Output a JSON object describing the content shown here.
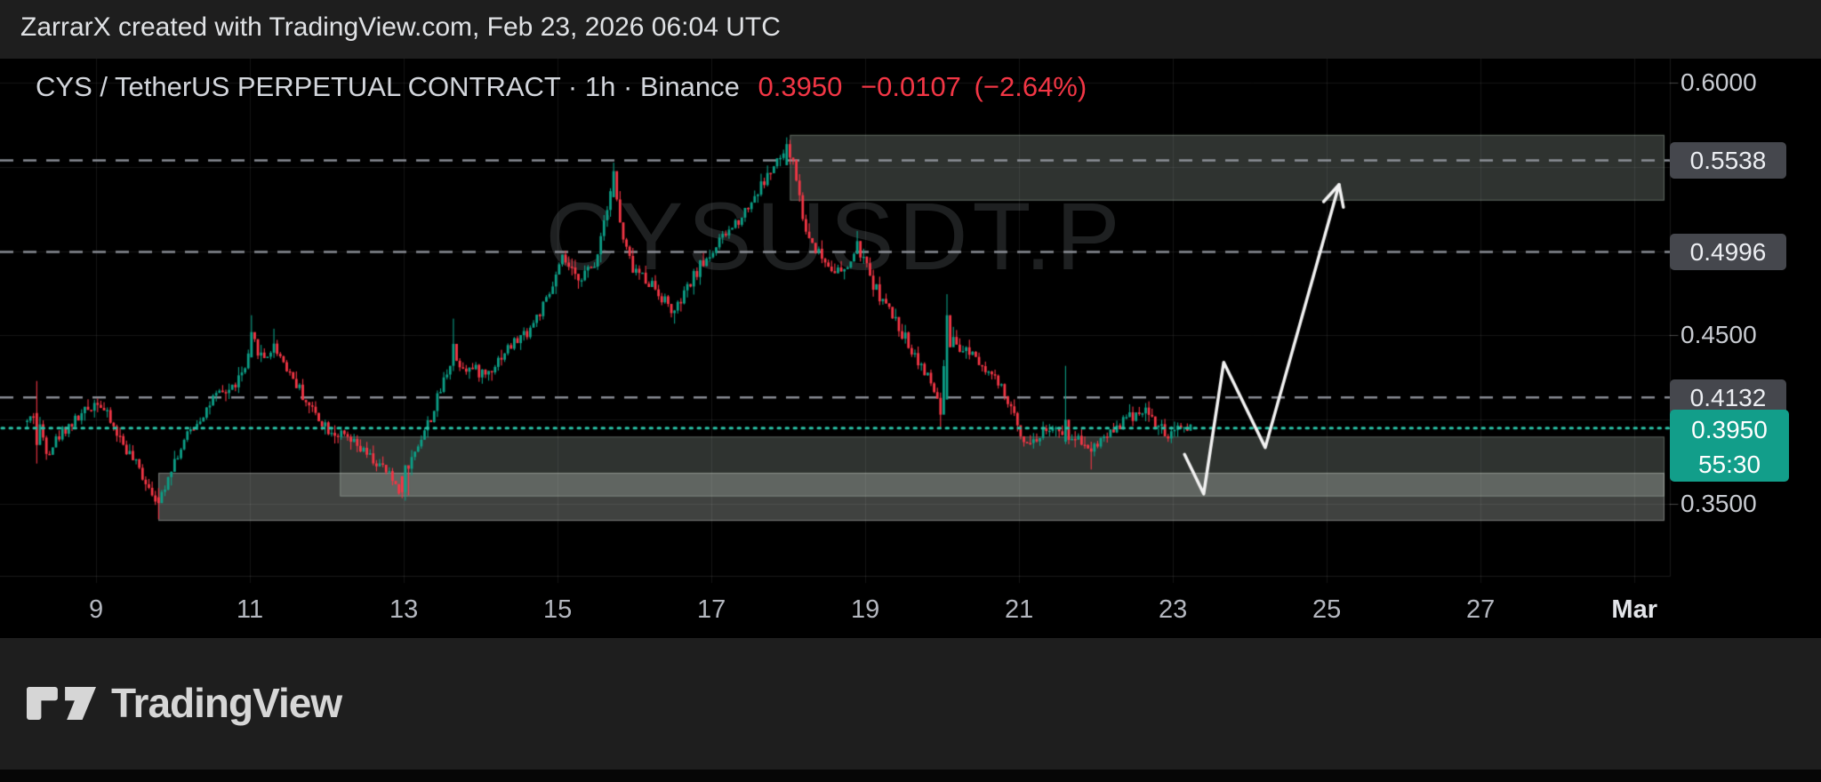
{
  "attribution": "ZarrarX created with TradingView.com, Feb 23, 2026 06:04 UTC",
  "header": {
    "symbol_title": "CYS / TetherUS PERPETUAL CONTRACT · 1h · Binance",
    "last_price": "0.3950",
    "change": "−0.0107",
    "change_pct": "(−2.64%)"
  },
  "watermark": "CYSUSDT.P",
  "logo": {
    "brand": "TradingView"
  },
  "colors": {
    "page_bg": "#1e1e1e",
    "panel_bg": "#000000",
    "up": "#0c9e86",
    "down": "#f23645",
    "quote_red": "#f23645",
    "dashed_level": "rgba(150,153,162,0.9)",
    "price_line": "#2abfa4",
    "grid": "rgba(255,255,255,0.08)",
    "axis_border": "rgba(255,255,255,0.10)",
    "tick": "rgba(255,255,255,0.28)",
    "projection": "#f2f2f2",
    "label_box_bg": "#45474d",
    "current_label_bg": "#129e8a"
  },
  "price_axis": {
    "labels": [
      {
        "text": "0.6000",
        "price": 0.6,
        "style": "plain"
      },
      {
        "text": "0.5538",
        "price": 0.5538,
        "style": "box"
      },
      {
        "text": "0.4996",
        "price": 0.4996,
        "style": "box"
      },
      {
        "text": "0.4500",
        "price": 0.45,
        "style": "plain"
      },
      {
        "text": "0.4132",
        "price": 0.4132,
        "style": "box"
      },
      {
        "text": "0.3950",
        "price": 0.395,
        "style": "current",
        "countdown": "55:30"
      },
      {
        "text": "0.3500",
        "price": 0.35,
        "style": "plain"
      }
    ]
  },
  "time_axis": {
    "labels": [
      {
        "text": "9",
        "day": 9
      },
      {
        "text": "11",
        "day": 11
      },
      {
        "text": "13",
        "day": 13
      },
      {
        "text": "15",
        "day": 15
      },
      {
        "text": "17",
        "day": 17
      },
      {
        "text": "19",
        "day": 19
      },
      {
        "text": "21",
        "day": 21
      },
      {
        "text": "23",
        "day": 23
      },
      {
        "text": "25",
        "day": 25
      },
      {
        "text": "27",
        "day": 27
      },
      {
        "text": "Mar",
        "day": 29,
        "bold": true
      }
    ]
  },
  "chart_data": {
    "type": "candlestick",
    "symbol": "CYSUSDT.P",
    "exchange": "Binance",
    "interval": "1h",
    "title": "CYS / TetherUS PERPETUAL CONTRACT",
    "x_domain_days": [
      8.063,
      29.46
    ],
    "y_domain_price": [
      0.6142,
      0.3074
    ],
    "gridline_prices": [
      0.6,
      0.55,
      0.5,
      0.45,
      0.4,
      0.35
    ],
    "gridline_days": [
      9,
      11,
      13,
      15,
      17,
      19,
      21,
      23,
      25,
      27,
      29
    ],
    "current_price": 0.395,
    "dashed_levels": [
      0.5538,
      0.4996,
      0.4132
    ],
    "price_anchors": [
      [
        8.07,
        0.398
      ],
      [
        8.19,
        0.404
      ],
      [
        8.35,
        0.381
      ],
      [
        8.55,
        0.394
      ],
      [
        8.8,
        0.403
      ],
      [
        9.0,
        0.412
      ],
      [
        9.25,
        0.392
      ],
      [
        9.5,
        0.373
      ],
      [
        9.72,
        0.357
      ],
      [
        9.8,
        0.352
      ],
      [
        9.95,
        0.372
      ],
      [
        10.2,
        0.393
      ],
      [
        10.5,
        0.412
      ],
      [
        10.75,
        0.419
      ],
      [
        10.92,
        0.43
      ],
      [
        11.02,
        0.447
      ],
      [
        11.15,
        0.436
      ],
      [
        11.3,
        0.444
      ],
      [
        11.5,
        0.428
      ],
      [
        11.75,
        0.408
      ],
      [
        12.0,
        0.395
      ],
      [
        12.25,
        0.388
      ],
      [
        12.5,
        0.379
      ],
      [
        12.75,
        0.369
      ],
      [
        12.92,
        0.359
      ],
      [
        13.0,
        0.362
      ],
      [
        13.1,
        0.38
      ],
      [
        13.35,
        0.403
      ],
      [
        13.6,
        0.437
      ],
      [
        13.8,
        0.431
      ],
      [
        14.05,
        0.427
      ],
      [
        14.3,
        0.441
      ],
      [
        14.6,
        0.453
      ],
      [
        14.85,
        0.471
      ],
      [
        15.05,
        0.496
      ],
      [
        15.2,
        0.484
      ],
      [
        15.45,
        0.49
      ],
      [
        15.62,
        0.527
      ],
      [
        15.7,
        0.545
      ],
      [
        15.82,
        0.508
      ],
      [
        15.95,
        0.49
      ],
      [
        16.2,
        0.481
      ],
      [
        16.5,
        0.463
      ],
      [
        16.8,
        0.489
      ],
      [
        17.1,
        0.506
      ],
      [
        17.4,
        0.523
      ],
      [
        17.7,
        0.544
      ],
      [
        17.92,
        0.558
      ],
      [
        18.05,
        0.552
      ],
      [
        18.2,
        0.512
      ],
      [
        18.45,
        0.494
      ],
      [
        18.7,
        0.486
      ],
      [
        18.88,
        0.503
      ],
      [
        19.1,
        0.479
      ],
      [
        19.4,
        0.456
      ],
      [
        19.7,
        0.433
      ],
      [
        19.95,
        0.41
      ],
      [
        20.06,
        0.452
      ],
      [
        20.18,
        0.44
      ],
      [
        20.35,
        0.442
      ],
      [
        20.6,
        0.428
      ],
      [
        20.8,
        0.414
      ],
      [
        21.0,
        0.392
      ],
      [
        21.15,
        0.386
      ],
      [
        21.35,
        0.396
      ],
      [
        21.55,
        0.389
      ],
      [
        21.75,
        0.39
      ],
      [
        21.92,
        0.383
      ],
      [
        22.1,
        0.391
      ],
      [
        22.35,
        0.4
      ],
      [
        22.6,
        0.407
      ],
      [
        22.78,
        0.396
      ],
      [
        22.95,
        0.389
      ],
      [
        23.1,
        0.397
      ],
      [
        23.2,
        0.395
      ]
    ],
    "wick_events": [
      {
        "day": 8.19,
        "high": 0.423,
        "low": 0.374,
        "open": 0.404,
        "close": 0.385
      },
      {
        "day": 9.8,
        "low": 0.341,
        "open": 0.354,
        "close": 0.3505
      },
      {
        "day": 11.02,
        "high": 0.462,
        "open": 0.437,
        "close": 0.452
      },
      {
        "day": 11.3,
        "high": 0.454
      },
      {
        "day": 12.94,
        "low": 0.3535,
        "open": 0.3665,
        "close": 0.357
      },
      {
        "day": 13.0,
        "low": 0.352,
        "open": 0.357,
        "close": 0.373
      },
      {
        "day": 13.62,
        "high": 0.46,
        "open": 0.432,
        "close": 0.445
      },
      {
        "day": 15.7,
        "high": 0.5525,
        "open": 0.532,
        "close": 0.5475
      },
      {
        "day": 16.5,
        "low": 0.457
      },
      {
        "day": 17.95,
        "high": 0.5675,
        "open": 0.551,
        "close": 0.5635
      },
      {
        "day": 18.0,
        "high": 0.566,
        "open": 0.5635,
        "close": 0.5555
      },
      {
        "day": 18.88,
        "high": 0.512
      },
      {
        "day": 19.97,
        "low": 0.3955,
        "open": 0.413,
        "close": 0.403
      },
      {
        "day": 20.06,
        "high": 0.4745,
        "open": 0.412,
        "close": 0.462
      },
      {
        "day": 20.1,
        "open": 0.462,
        "close": 0.443
      },
      {
        "day": 21.6,
        "high": 0.432,
        "open": 0.387,
        "close": 0.4
      },
      {
        "day": 21.64,
        "open": 0.4,
        "close": 0.388
      },
      {
        "day": 21.92,
        "low": 0.3705
      }
    ],
    "zones": [
      {
        "name": "supply-zone",
        "day_start": 18.02,
        "day_end": 29.39,
        "price_top": 0.569,
        "price_bottom": 0.53,
        "fill": "rgba(170,182,174,0.28)",
        "stroke": "rgba(190,212,196,0.35)"
      },
      {
        "name": "demand-zone-upper",
        "day_start": 12.17,
        "day_end": 29.39,
        "price_top": 0.39,
        "price_bottom": 0.3545,
        "fill": "rgba(170,182,174,0.28)",
        "stroke": "rgba(190,212,196,0.30)"
      },
      {
        "name": "demand-zone-lower",
        "day_start": 9.81,
        "day_end": 29.39,
        "price_top": 0.3685,
        "price_bottom": 0.34,
        "fill": "rgba(212,218,212,0.30)",
        "stroke": "rgba(225,232,226,0.35)"
      }
    ],
    "projection_path": [
      [
        23.15,
        0.3795
      ],
      [
        23.4,
        0.356
      ],
      [
        23.66,
        0.434
      ],
      [
        24.2,
        0.3835
      ],
      [
        25.16,
        0.5395
      ]
    ]
  }
}
